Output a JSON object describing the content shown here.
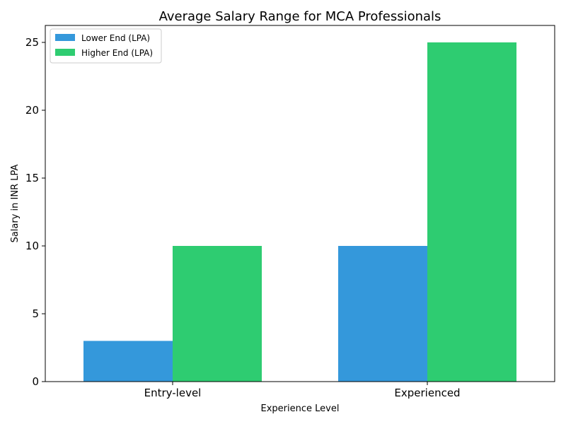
{
  "chart_data": {
    "type": "bar",
    "title": "Average Salary Range for MCA Professionals",
    "xlabel": "Experience Level",
    "ylabel": "Salary in INR LPA",
    "categories": [
      "Entry-level",
      "Experienced"
    ],
    "series": [
      {
        "name": "Lower End (LPA)",
        "values": [
          3,
          10
        ],
        "color": "#3498db"
      },
      {
        "name": "Higher End (LPA)",
        "values": [
          10,
          25
        ],
        "color": "#2ecc71"
      }
    ],
    "ylim": [
      0,
      26.25
    ],
    "yticks": [
      0,
      5,
      10,
      15,
      20,
      25
    ],
    "grid": false,
    "legend_position": "top-left"
  }
}
